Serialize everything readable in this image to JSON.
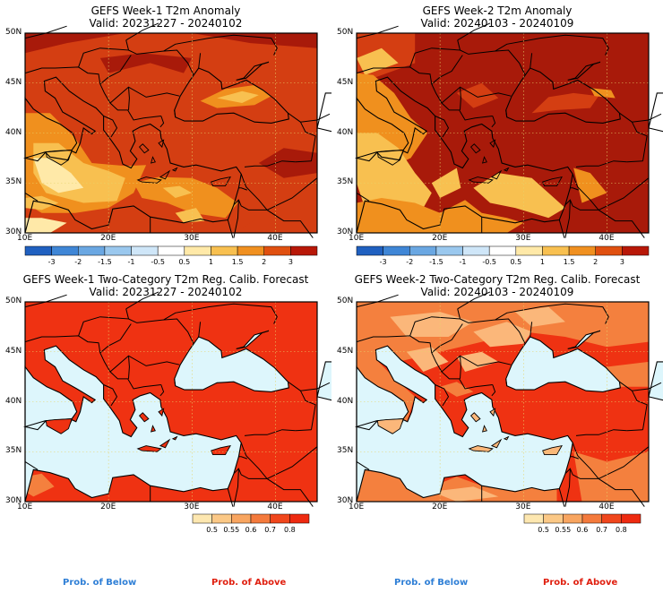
{
  "panels": [
    {
      "title": "GEFS Week-1 T2m Anomaly",
      "valid": "Valid: 20231227 - 20240102",
      "type": "anomaly"
    },
    {
      "title": "GEFS Week-2 T2m Anomaly",
      "valid": "Valid: 20240103 - 20240109",
      "type": "anomaly"
    },
    {
      "title": "GEFS Week-1 Two-Category T2m Reg. Calib. Forecast",
      "valid": "Valid: 20231227 - 20240102",
      "type": "prob"
    },
    {
      "title": "GEFS Week-2 Two-Category T2m Reg. Calib. Forecast",
      "valid": "Valid: 20240103 - 20240109",
      "type": "prob"
    }
  ],
  "lat_labels": [
    "50N",
    "45N",
    "40N",
    "35N",
    "30N"
  ],
  "lon_labels": [
    "10E",
    "20E",
    "30E",
    "40E"
  ],
  "anomaly_colorbar": {
    "ticks": [
      "-3",
      "-2",
      "-1.5",
      "-1",
      "-0.5",
      "0.5",
      "1",
      "1.5",
      "2",
      "3"
    ],
    "colors": [
      "#2060c0",
      "#3f86d6",
      "#6aa7e2",
      "#9ac8ee",
      "#cfe6f8",
      "#ffffff",
      "#ffe9a8",
      "#f8c050",
      "#f09020",
      "#e05010",
      "#b81808"
    ]
  },
  "prob_colorbar": {
    "ticks": [
      "0.5",
      "0.55",
      "0.6",
      "0.7",
      "0.8"
    ],
    "colors": [
      "#fde7b0",
      "#fbc886",
      "#f8a560",
      "#f47a3c",
      "#f0461c",
      "#ee2a10"
    ]
  },
  "footer": {
    "below": "Prob. of Below",
    "above": "Prob. of Above"
  },
  "colors": {
    "anom_dark": "#a81a0a",
    "anom_mid": "#d43e12",
    "anom_orange": "#f0901e",
    "anom_light": "#f8c050",
    "anom_pale": "#ffe9a8",
    "sea": "#ddf6fc",
    "prob_red": "#ef3212",
    "prob_orange": "#f4803e",
    "prob_pale": "#fbb77a"
  }
}
